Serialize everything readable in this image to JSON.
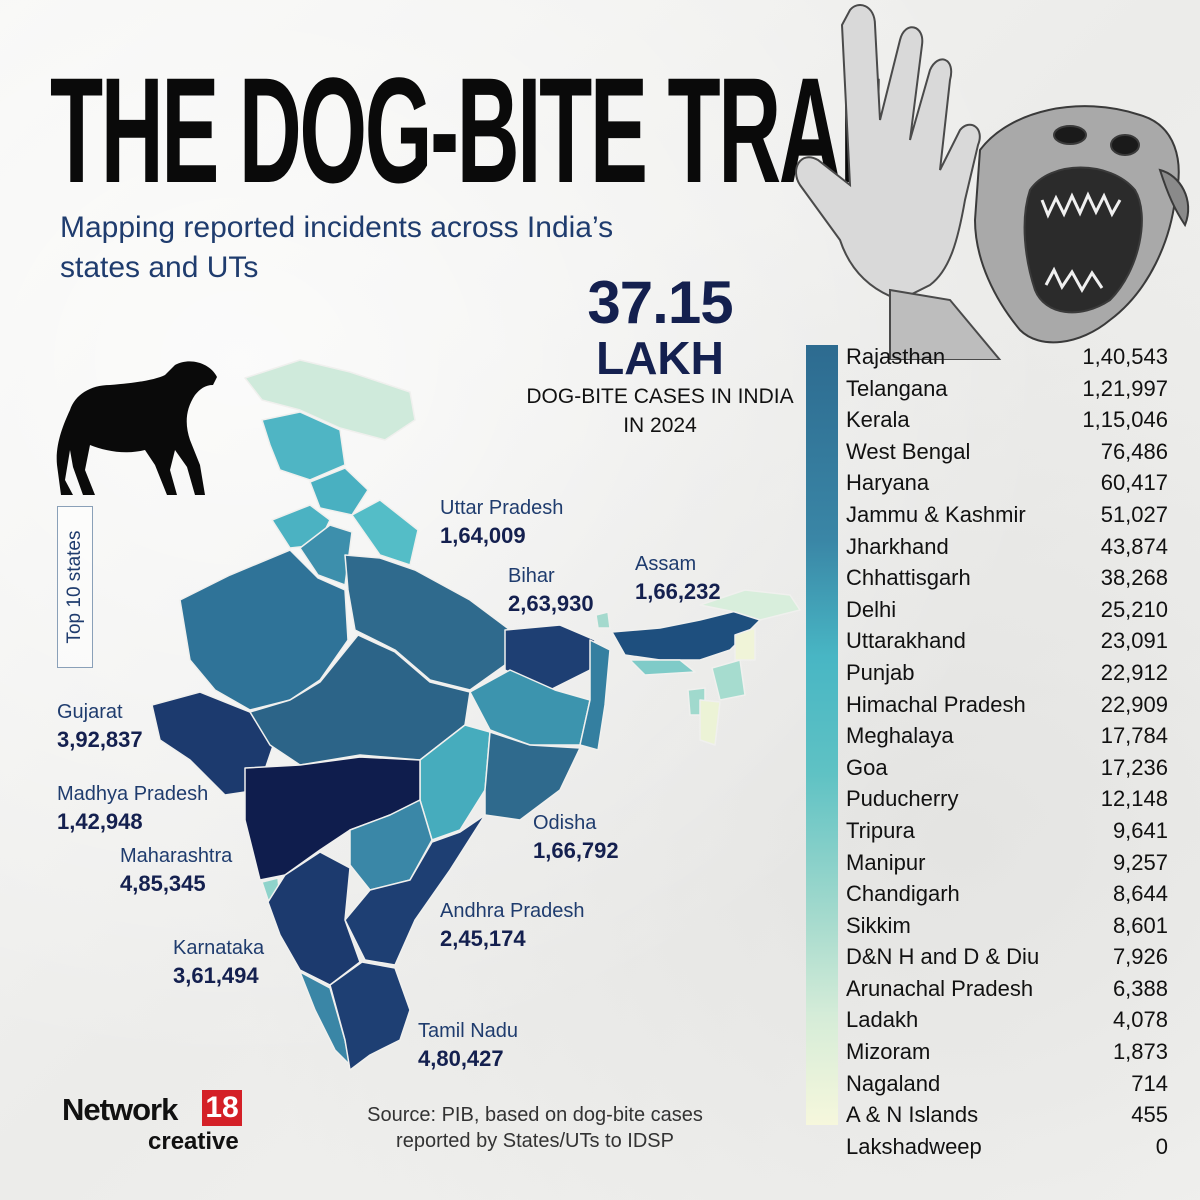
{
  "title": "THE DOG-BITE TRAIL",
  "subtitle": "Mapping reported incidents across India’s states and UTs",
  "headline": {
    "value": "37.15",
    "unit": "LAKH",
    "caption": "DOG-BITE CASES IN INDIA IN 2024"
  },
  "top10_label": "Top 10 states",
  "top10": [
    {
      "id": "up",
      "name": "Uttar Pradesh",
      "value": "1,64,009"
    },
    {
      "id": "bihar",
      "name": "Bihar",
      "value": "2,63,930"
    },
    {
      "id": "assam",
      "name": "Assam",
      "value": "1,66,232"
    },
    {
      "id": "gujarat",
      "name": "Gujarat",
      "value": "3,92,837"
    },
    {
      "id": "mp",
      "name": "Madhya Pradesh",
      "value": "1,42,948"
    },
    {
      "id": "maha",
      "name": "Maharashtra",
      "value": "4,85,345"
    },
    {
      "id": "odisha",
      "name": "Odisha",
      "value": "1,66,792"
    },
    {
      "id": "ap",
      "name": "Andhra Pradesh",
      "value": "2,45,174"
    },
    {
      "id": "karnataka",
      "name": "Karnataka",
      "value": "3,61,494"
    },
    {
      "id": "tn",
      "name": "Tamil Nadu",
      "value": "4,80,427"
    }
  ],
  "others": [
    {
      "name": "Rajasthan",
      "value": "1,40,543"
    },
    {
      "name": "Telangana",
      "value": "1,21,997"
    },
    {
      "name": "Kerala",
      "value": "1,15,046"
    },
    {
      "name": "West Bengal",
      "value": "76,486"
    },
    {
      "name": "Haryana",
      "value": "60,417"
    },
    {
      "name": "Jammu & Kashmir",
      "value": "51,027"
    },
    {
      "name": "Jharkhand",
      "value": "43,874"
    },
    {
      "name": "Chhattisgarh",
      "value": "38,268"
    },
    {
      "name": "Delhi",
      "value": "25,210"
    },
    {
      "name": "Uttarakhand",
      "value": "23,091"
    },
    {
      "name": "Punjab",
      "value": "22,912"
    },
    {
      "name": "Himachal Pradesh",
      "value": "22,909"
    },
    {
      "name": "Meghalaya",
      "value": "17,784"
    },
    {
      "name": "Goa",
      "value": "17,236"
    },
    {
      "name": "Puducherry",
      "value": "12,148"
    },
    {
      "name": "Tripura",
      "value": "9,641"
    },
    {
      "name": "Manipur",
      "value": "9,257"
    },
    {
      "name": "Chandigarh",
      "value": "8,644"
    },
    {
      "name": "Sikkim",
      "value": "8,601"
    },
    {
      "name": "D&N H and D & Diu",
      "value": "7,926"
    },
    {
      "name": "Arunachal Pradesh",
      "value": "6,388"
    },
    {
      "name": "Ladakh",
      "value": "4,078"
    },
    {
      "name": "Mizoram",
      "value": "1,873"
    },
    {
      "name": "Nagaland",
      "value": "714"
    },
    {
      "name": " A & N Islands",
      "value": "455"
    },
    {
      "name": "Lakshadweep",
      "value": "0"
    }
  ],
  "source": "Source: PIB, based on dog-bite cases reported by States/UTs to IDSP",
  "logo": {
    "brand": "Network",
    "number": "18",
    "sub": "creative"
  },
  "colors": {
    "darkest": "#0f1d4d",
    "dark": "#1e3f73",
    "mid": "#2f6a8d",
    "teal": "#49b4c3",
    "light": "#9fd8cc",
    "lightest": "#d8eedc"
  }
}
